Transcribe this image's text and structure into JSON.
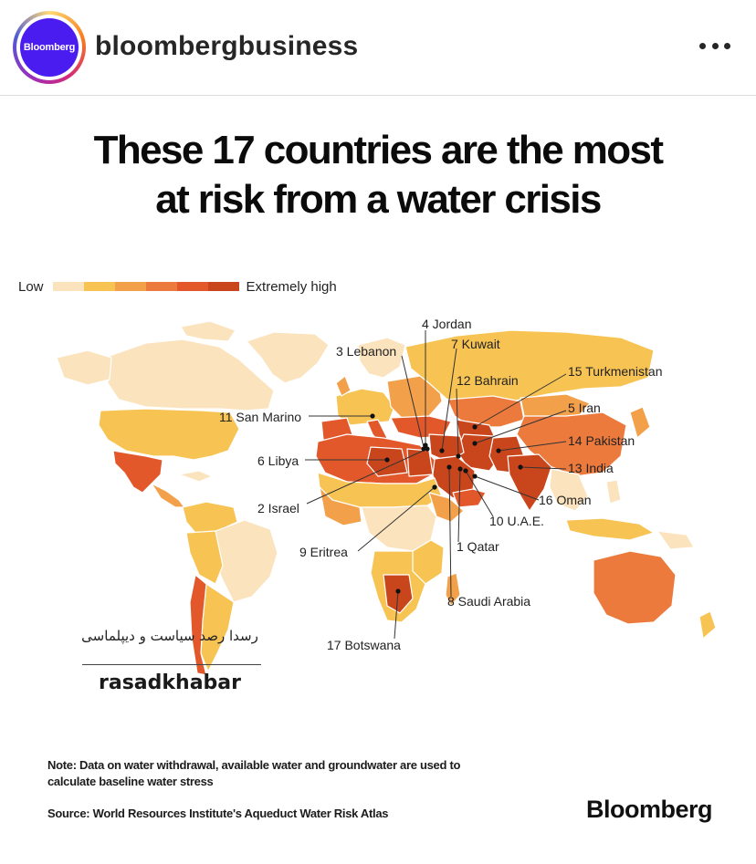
{
  "post": {
    "avatar_text": "Bloomberg",
    "username": "bloombergbusiness",
    "more_icon": "more-horizontal-icon"
  },
  "graphic": {
    "title_line1": "These 17 countries are the most",
    "title_line2": "at risk from a water crisis",
    "legend": {
      "low_label": "Low",
      "high_label": "Extremely high",
      "colors": [
        "#fbe3bd",
        "#f7c454",
        "#f3a04a",
        "#ec7a3d",
        "#e2582b",
        "#c9461d"
      ]
    },
    "countries": [
      {
        "rank_label": "1 Qatar"
      },
      {
        "rank_label": "2 Israel"
      },
      {
        "rank_label": "3 Lebanon"
      },
      {
        "rank_label": "4 Jordan"
      },
      {
        "rank_label": "5 Iran"
      },
      {
        "rank_label": "6 Libya"
      },
      {
        "rank_label": "7 Kuwait"
      },
      {
        "rank_label": "8 Saudi Arabia"
      },
      {
        "rank_label": "9 Eritrea"
      },
      {
        "rank_label": "10 U.A.E."
      },
      {
        "rank_label": "11 San Marino"
      },
      {
        "rank_label": "12 Bahrain"
      },
      {
        "rank_label": "13 India"
      },
      {
        "rank_label": "14 Pakistan"
      },
      {
        "rank_label": "15 Turkmenistan"
      },
      {
        "rank_label": "16 Oman"
      },
      {
        "rank_label": "17 Botswana"
      }
    ],
    "watermark_fa": "رسدا رصد سیاست و دیپلماسی",
    "watermark_en": "rasadkhabar",
    "note": "Note: Data on water withdrawal, available water and groundwater are used to calculate baseline water stress",
    "source": "Source: World Resources Institute's Aqueduct Water Risk Atlas",
    "brand": "Bloomberg"
  }
}
